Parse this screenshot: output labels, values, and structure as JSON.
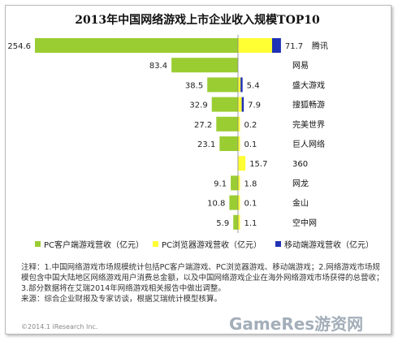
{
  "chart_data": {
    "type": "bar",
    "title": "2013年中国网络游戏上市企业收入规模TOP10",
    "categories": [
      "腾讯",
      "网易",
      "盛大游戏",
      "搜狐畅游",
      "完美世界",
      "巨人网络",
      "360",
      "网龙",
      "金山",
      "空中网"
    ],
    "series": [
      {
        "name": "PC客户端游戏营收（亿元）",
        "color": "#9acd32",
        "values": [
          254.6,
          83.4,
          38.5,
          32.9,
          27.2,
          23.1,
          0,
          9.1,
          10.8,
          5.9
        ]
      },
      {
        "name": "PC浏览器游戏营收（亿元）",
        "color": "#ffff33",
        "values": [
          71.7,
          0,
          5.4,
          7.9,
          0.2,
          0.1,
          15.7,
          1.8,
          0.1,
          1.1
        ]
      },
      {
        "name": "移动端游戏营收（亿元）",
        "color": "#1f31b5",
        "values": [
          18.6,
          0,
          1.0,
          0.5,
          0,
          0,
          0,
          0,
          0,
          0
        ]
      }
    ],
    "left_labels": [
      "254.6",
      "83.4",
      "38.5",
      "32.9",
      "27.2",
      "23.1",
      "",
      "9.1",
      "10.8",
      "5.9"
    ],
    "right_labels": [
      "71.7",
      "",
      "5.4",
      "7.9",
      "0.2",
      "0.1",
      "15.7",
      "1.8",
      "0.1",
      "1.1"
    ],
    "legend_position": "bottom",
    "grid": false
  },
  "notes": {
    "line1": "注释：1.中国网络游戏市场规模统计包括PC客户端游戏、PC浏览器游戏、移动端游戏；2.网络游戏市场规模包含中国大陆地区网络游戏用户消费总金额，以及中国网络游戏企业在海外网络游戏市场获得的总营收；3.部分数据将在艾瑞2014年网络游戏相关报告中做出调整。",
    "line2": "来源：综合企业财报及专家访谈，根据艾瑞统计模型核算。"
  },
  "watermark": "GameRes游资网",
  "copyright": "©2014.1 iResearch Inc."
}
